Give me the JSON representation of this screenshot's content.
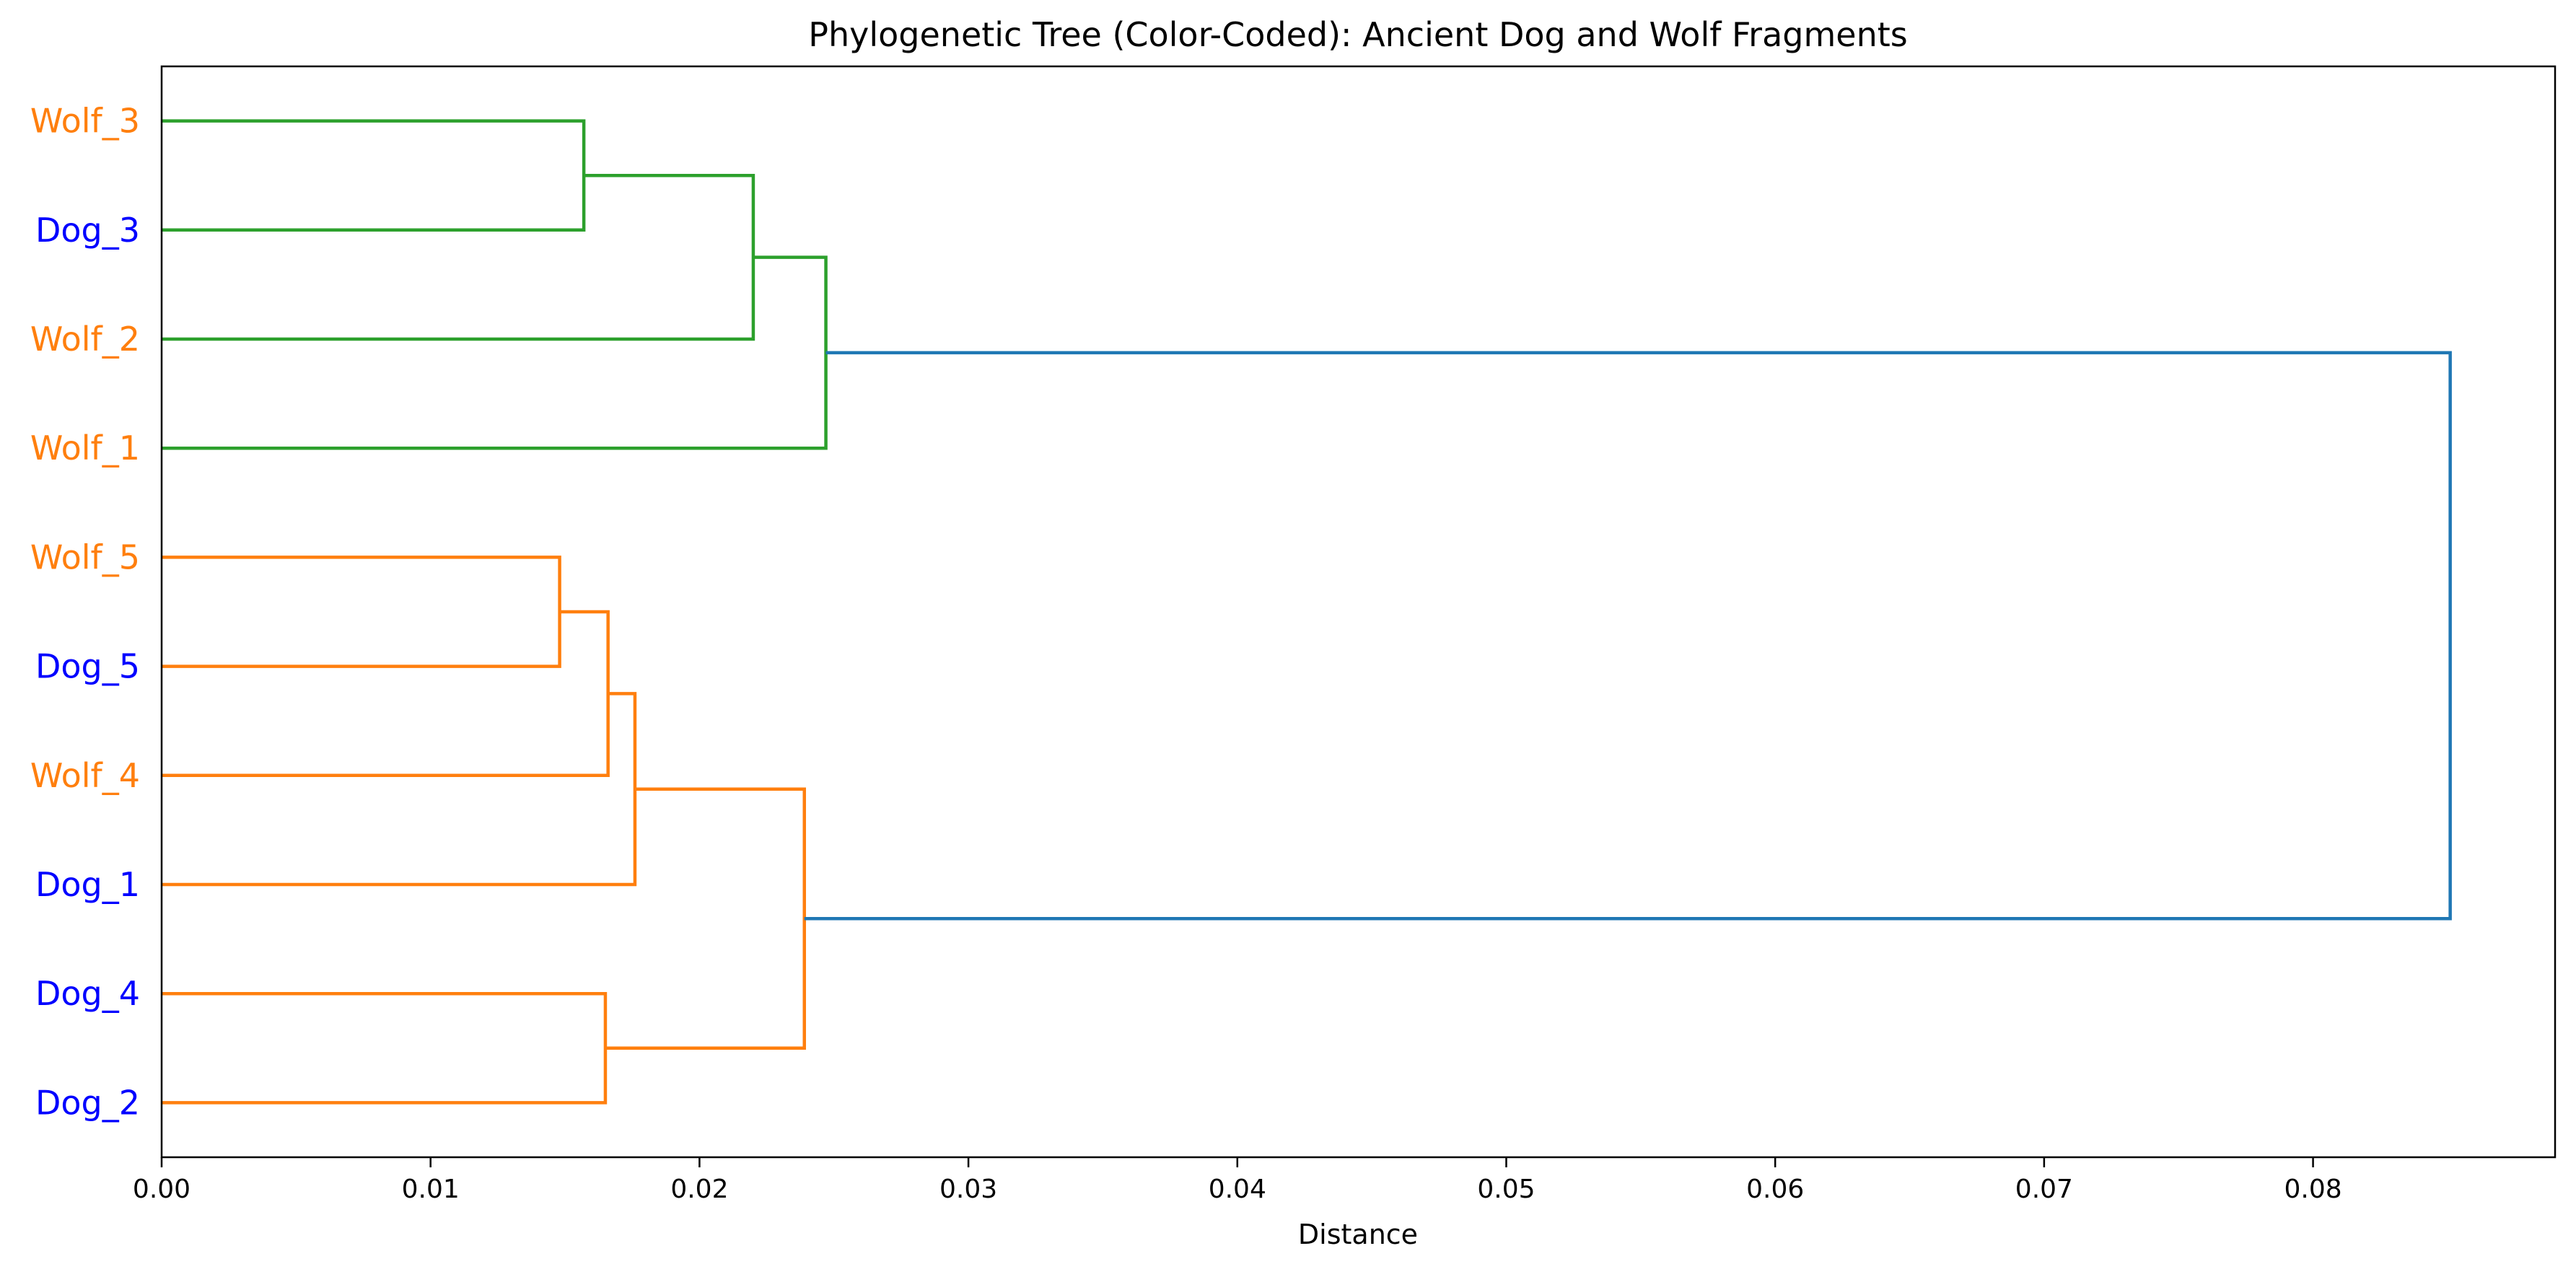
{
  "chart_data": {
    "type": "dendrogram",
    "title": "Phylogenetic Tree (Color-Coded): Ancient Dog and Wolf Fragments",
    "xlabel": "Distance",
    "ylabel": "",
    "xlim": [
      0,
      0.089
    ],
    "xticks": [
      "0.00",
      "0.01",
      "0.02",
      "0.03",
      "0.04",
      "0.05",
      "0.06",
      "0.07",
      "0.08"
    ],
    "grid": false,
    "leaves": [
      {
        "label": "Wolf_3",
        "group": "Wolf"
      },
      {
        "label": "Dog_3",
        "group": "Dog"
      },
      {
        "label": "Wolf_2",
        "group": "Wolf"
      },
      {
        "label": "Wolf_1",
        "group": "Wolf"
      },
      {
        "label": "Wolf_5",
        "group": "Wolf"
      },
      {
        "label": "Dog_5",
        "group": "Dog"
      },
      {
        "label": "Wolf_4",
        "group": "Wolf"
      },
      {
        "label": "Dog_1",
        "group": "Dog"
      },
      {
        "label": "Dog_4",
        "group": "Dog"
      },
      {
        "label": "Dog_2",
        "group": "Dog"
      }
    ],
    "label_colors": {
      "Wolf": "#ff7f0e",
      "Dog": "#0000ff"
    },
    "merges": [
      {
        "id": "c1",
        "left": "Wolf_3",
        "right": "Dog_3",
        "distance": 0.0157,
        "color": "#2ca02c"
      },
      {
        "id": "c2",
        "left": "c1",
        "right": "Wolf_2",
        "distance": 0.022,
        "color": "#2ca02c"
      },
      {
        "id": "c3",
        "left": "c2",
        "right": "Wolf_1",
        "distance": 0.0247,
        "color": "#2ca02c"
      },
      {
        "id": "c4",
        "left": "Wolf_5",
        "right": "Dog_5",
        "distance": 0.0148,
        "color": "#ff7f0e"
      },
      {
        "id": "c5",
        "left": "c4",
        "right": "Wolf_4",
        "distance": 0.0166,
        "color": "#ff7f0e"
      },
      {
        "id": "c6",
        "left": "c5",
        "right": "Dog_1",
        "distance": 0.0176,
        "color": "#ff7f0e"
      },
      {
        "id": "c7",
        "left": "Dog_4",
        "right": "Dog_2",
        "distance": 0.0165,
        "color": "#ff7f0e"
      },
      {
        "id": "c8",
        "left": "c6",
        "right": "c7",
        "distance": 0.0239,
        "color": "#ff7f0e"
      },
      {
        "id": "c9",
        "left": "c3",
        "right": "c8",
        "distance": 0.0851,
        "color": "#1f77b4"
      }
    ]
  }
}
